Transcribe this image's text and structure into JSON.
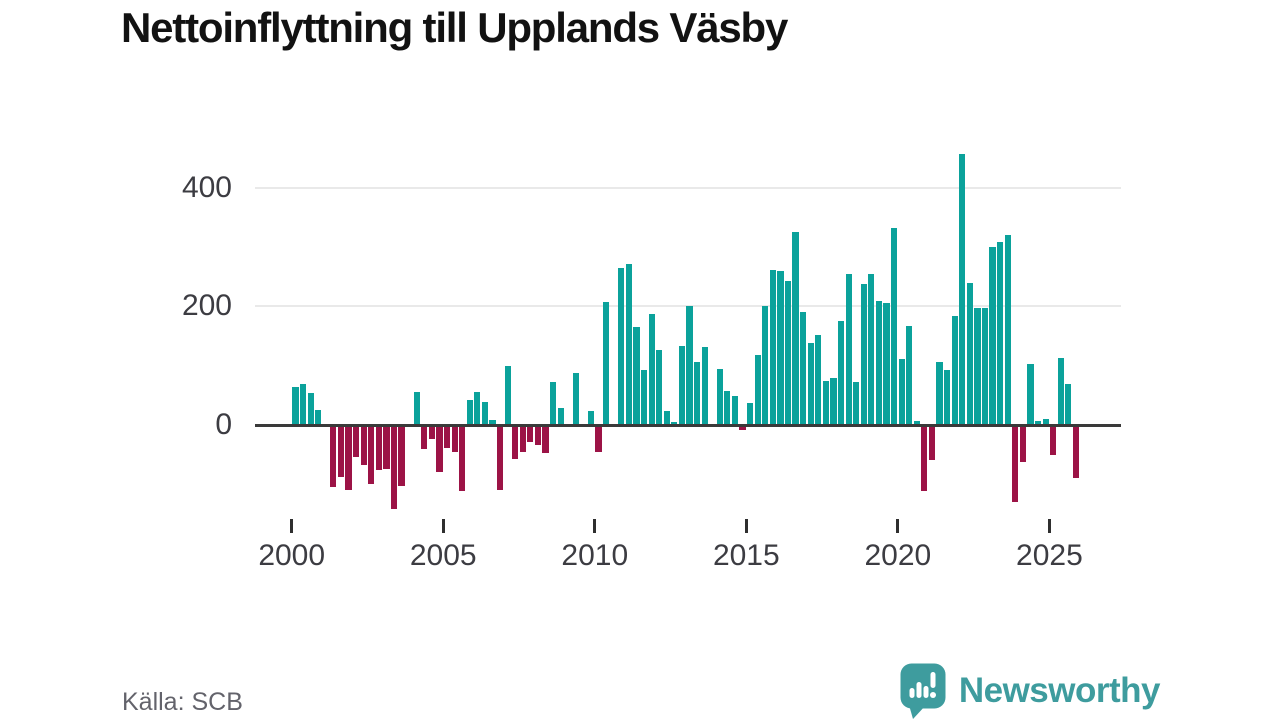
{
  "title": "Nettoinflyttning till Upplands Väsby",
  "source": {
    "text": "Källa: SCB"
  },
  "brand": {
    "name": "Newsworthy"
  },
  "colors": {
    "positive_bar": "#0ba29b",
    "negative_bar": "#9c1346",
    "zero_line": "#3a3a3a",
    "gridline": "#e9e9e9",
    "axis_label": "#3c3c42",
    "title_text": "#121212",
    "source_text": "#63636b",
    "brand_teal": "#3e9c9e"
  },
  "chart_data": {
    "type": "bar",
    "title": "Nettoinflyttning till Upplands Väsby",
    "time_axis": "quarterly",
    "start_year": 2000,
    "x_tick_labels": [
      "2000",
      "2005",
      "2010",
      "2015",
      "2020",
      "2025"
    ],
    "y_ticks": [
      0,
      200,
      400
    ],
    "y_tick_labels": [
      "0",
      "200",
      "400"
    ],
    "ylim": [
      -175,
      480
    ],
    "grid": "horizontal",
    "legend": "none",
    "years": [
      {
        "year": 2000,
        "quarters": [
          64,
          69,
          54,
          25
        ]
      },
      {
        "year": 2001,
        "quarters": [
          0,
          -105,
          -88,
          -110
        ]
      },
      {
        "year": 2002,
        "quarters": [
          -54,
          -68,
          -99,
          -76
        ]
      },
      {
        "year": 2003,
        "quarters": [
          -74,
          -142,
          -102,
          0
        ]
      },
      {
        "year": 2004,
        "quarters": [
          55,
          -40,
          -23,
          -80
        ]
      },
      {
        "year": 2005,
        "quarters": [
          -38,
          -46,
          -112,
          42
        ]
      },
      {
        "year": 2006,
        "quarters": [
          55,
          38,
          8,
          -109
        ]
      },
      {
        "year": 2007,
        "quarters": [
          100,
          -57,
          -46,
          -28
        ]
      },
      {
        "year": 2008,
        "quarters": [
          -33,
          -48,
          72,
          28
        ]
      },
      {
        "year": 2009,
        "quarters": [
          0,
          88,
          0,
          24
        ]
      },
      {
        "year": 2010,
        "quarters": [
          -45,
          207,
          0,
          264
        ]
      },
      {
        "year": 2011,
        "quarters": [
          272,
          165,
          92,
          187
        ]
      },
      {
        "year": 2012,
        "quarters": [
          127,
          23,
          5,
          134
        ]
      },
      {
        "year": 2013,
        "quarters": [
          200,
          106,
          131,
          0
        ]
      },
      {
        "year": 2014,
        "quarters": [
          94,
          58,
          49,
          -8
        ]
      },
      {
        "year": 2015,
        "quarters": [
          37,
          118,
          200,
          261
        ]
      },
      {
        "year": 2016,
        "quarters": [
          259,
          243,
          326,
          190
        ]
      },
      {
        "year": 2017,
        "quarters": [
          139,
          151,
          75,
          80
        ]
      },
      {
        "year": 2018,
        "quarters": [
          176,
          255,
          72,
          237
        ]
      },
      {
        "year": 2019,
        "quarters": [
          254,
          209,
          206,
          332
        ]
      },
      {
        "year": 2020,
        "quarters": [
          111,
          167,
          7,
          -112
        ]
      },
      {
        "year": 2021,
        "quarters": [
          -59,
          107,
          92,
          184
        ]
      },
      {
        "year": 2022,
        "quarters": [
          456,
          240,
          198,
          198
        ]
      },
      {
        "year": 2023,
        "quarters": [
          300,
          308,
          320,
          -130
        ]
      },
      {
        "year": 2024,
        "quarters": [
          -62,
          102,
          7,
          10
        ]
      },
      {
        "year": 2025,
        "quarters": [
          -50,
          113,
          69,
          -90
        ]
      }
    ]
  }
}
